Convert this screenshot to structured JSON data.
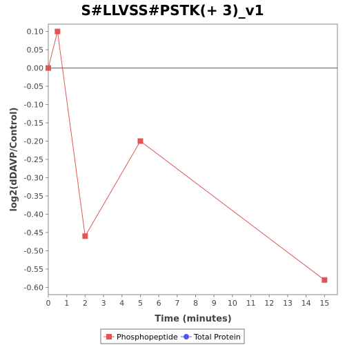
{
  "chart_data": {
    "type": "line",
    "title": "S#LLVSS#PSTK(+ 3)_v1",
    "xlabel": "Time (minutes)",
    "ylabel": "log2(dDAVP/Control)",
    "xlim": [
      0,
      15.7
    ],
    "ylim": [
      -0.62,
      0.12
    ],
    "xticks": [
      0,
      1,
      2,
      3,
      4,
      5,
      6,
      7,
      8,
      9,
      10,
      11,
      12,
      13,
      14,
      15
    ],
    "yticks": [
      0.1,
      0.05,
      0.0,
      -0.05,
      -0.1,
      -0.15,
      -0.2,
      -0.25,
      -0.3,
      -0.35,
      -0.4,
      -0.45,
      -0.5,
      -0.55,
      -0.6
    ],
    "xtick_labels": [
      "0",
      "1",
      "2",
      "3",
      "4",
      "5",
      "6",
      "7",
      "8",
      "9",
      "10",
      "11",
      "12",
      "13",
      "14",
      "15"
    ],
    "ytick_labels": [
      "0.10",
      "0.05",
      "0.00",
      "-0.05",
      "-0.10",
      "-0.15",
      "-0.20",
      "-0.25",
      "-0.30",
      "-0.35",
      "-0.40",
      "-0.45",
      "-0.50",
      "-0.55",
      "-0.60"
    ],
    "zero_line": true,
    "grid": false,
    "legend_position": "bottom",
    "series": [
      {
        "name": "Phosphopeptide",
        "color": "#e05555",
        "marker": "square",
        "x": [
          0,
          0.5,
          2,
          5,
          15
        ],
        "y": [
          0.0,
          0.1,
          -0.46,
          -0.2,
          -0.58
        ]
      },
      {
        "name": "Total Protein",
        "color": "#5555ee",
        "marker": "circle",
        "x": [],
        "y": []
      }
    ]
  }
}
